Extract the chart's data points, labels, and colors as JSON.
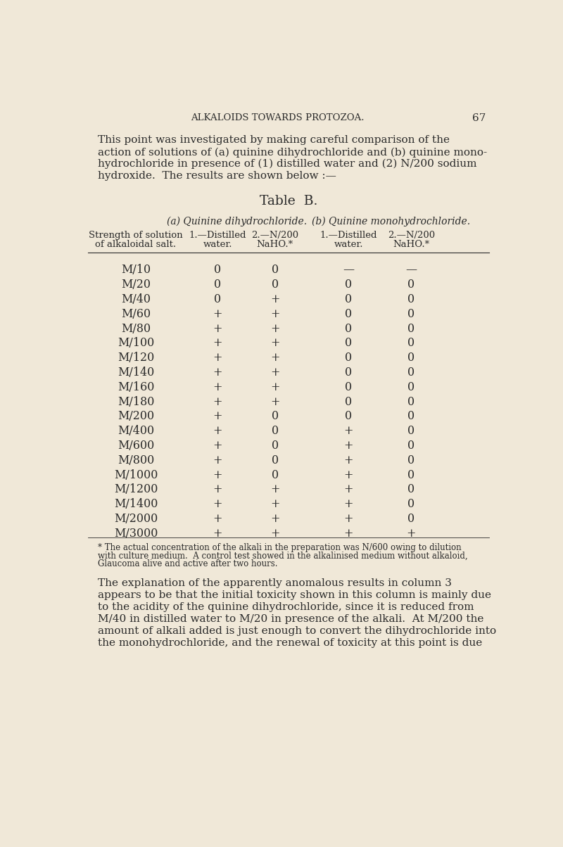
{
  "background_color": "#f0e8d8",
  "text_color": "#2a2a2a",
  "page_header": "ALKALOIDS TOWARDS PROTOZOA.",
  "page_number": "67",
  "intro_text": [
    "This point was investigated by making careful comparison of the",
    "action of solutions of (a) quinine dihydrochloride and (b) quinine mono-",
    "hydrochloride in presence of (1) distilled water and (2) N/200 sodium",
    "hydroxide.  The results are shown below :—"
  ],
  "table_title": "Table  B.",
  "col_group_a": "(a) Quinine dihydrochloride.",
  "col_group_b": "(b) Quinine monohydrochloride.",
  "col1_header": [
    "Strength of solution",
    "of alkaloidal salt."
  ],
  "col2_header": [
    "1.—Distilled",
    "water."
  ],
  "col3_header": [
    "2.—N/200",
    "NaHO.*"
  ],
  "col4_header": [
    "1.—Distilled",
    "water."
  ],
  "col5_header": [
    "2.—N/200",
    "NaHO.*"
  ],
  "rows": [
    [
      "M/10",
      "0",
      "0",
      "—",
      "—"
    ],
    [
      "M/20",
      "0",
      "0",
      "0",
      "0"
    ],
    [
      "M/40",
      "0",
      "+",
      "0",
      "0"
    ],
    [
      "M/60",
      "+",
      "+",
      "0",
      "0"
    ],
    [
      "M/80",
      "+",
      "+",
      "0",
      "0"
    ],
    [
      "M/100",
      "+",
      "+",
      "0",
      "0"
    ],
    [
      "M/120",
      "+",
      "+",
      "0",
      "0"
    ],
    [
      "M/140",
      "+",
      "+",
      "0",
      "0"
    ],
    [
      "M/160",
      "+",
      "+",
      "0",
      "0"
    ],
    [
      "M/180",
      "+",
      "+",
      "0",
      "0"
    ],
    [
      "M/200",
      "+",
      "0",
      "0",
      "0"
    ],
    [
      "M/400",
      "+",
      "0",
      "+",
      "0"
    ],
    [
      "M/600",
      "+",
      "0",
      "+",
      "0"
    ],
    [
      "M/800",
      "+",
      "0",
      "+",
      "0"
    ],
    [
      "M/1000",
      "+",
      "0",
      "+",
      "0"
    ],
    [
      "M/1200",
      "+",
      "+",
      "+",
      "0"
    ],
    [
      "M/1400",
      "+",
      "+",
      "+",
      "0"
    ],
    [
      "M/2000",
      "+",
      "+",
      "+",
      "0"
    ],
    [
      "M/3000",
      "+",
      "+",
      "+",
      "+"
    ]
  ],
  "footnote": [
    "* The actual concentration of the alkali in the preparation was N/600 owing to dilution",
    "with culture medium.  A control test showed in the alkalinised medium without alkaloid,",
    "Glaucoma alive and active after two hours."
  ],
  "body_text": [
    "The explanation of the apparently anomalous results in column 3",
    "appears to be that the initial toxicity shown in this column is mainly due",
    "to the acidity of the quinine dihydrochloride, since it is reduced from",
    "M/40 in distilled water to M/20 in presence of the alkali.  At M/200 the",
    "amount of alkali added is just enough to convert the dihydrochloride into",
    "the monohydrochloride, and the renewal of toxicity at this point is due"
  ]
}
